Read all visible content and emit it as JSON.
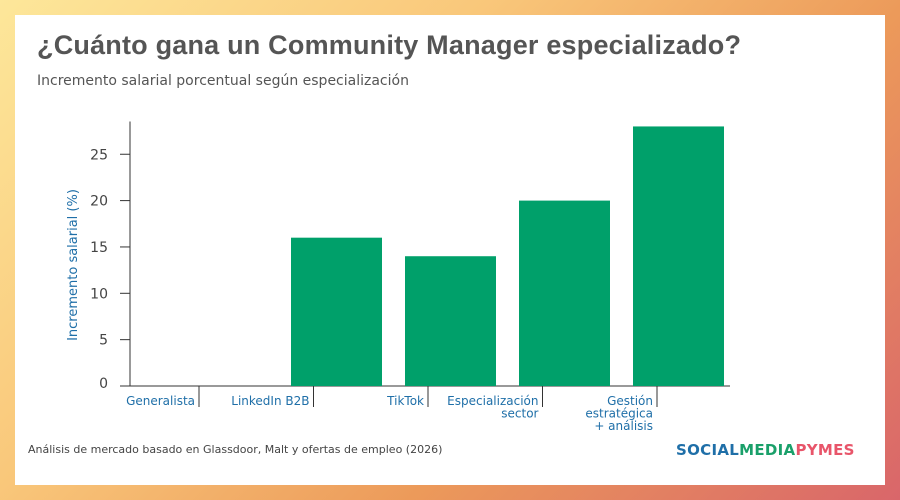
{
  "title": "¿Cuánto gana un Community Manager especializado?",
  "subtitle": "Incremento salarial porcentual según especialización",
  "footer": "Análisis de mercado basado en Glassdoor, Malt y ofertas de empleo (2026)",
  "logo": {
    "part1": "SOCIAL",
    "part2": "MEDIA",
    "part3": "PYMES",
    "colors": [
      "#1f6fa8",
      "#1aa06a",
      "#e8556a"
    ]
  },
  "chart_data": {
    "type": "bar",
    "title": "",
    "ylabel": "Incremento salarial (%)",
    "xlabel": "",
    "categories": [
      [
        "Generalista"
      ],
      [
        "LinkedIn B2B"
      ],
      [
        "TikTok"
      ],
      [
        "Especialización",
        "sector"
      ],
      [
        "Gestión",
        "estratégica",
        "+ análisis"
      ]
    ],
    "values": [
      0,
      16,
      14,
      20,
      28
    ],
    "ylim": [
      0,
      28
    ],
    "yticks": [
      0,
      5,
      10,
      15,
      20,
      25
    ],
    "grid": false,
    "bar_color": "#00a06a",
    "label_color": "#1f6fa8"
  }
}
